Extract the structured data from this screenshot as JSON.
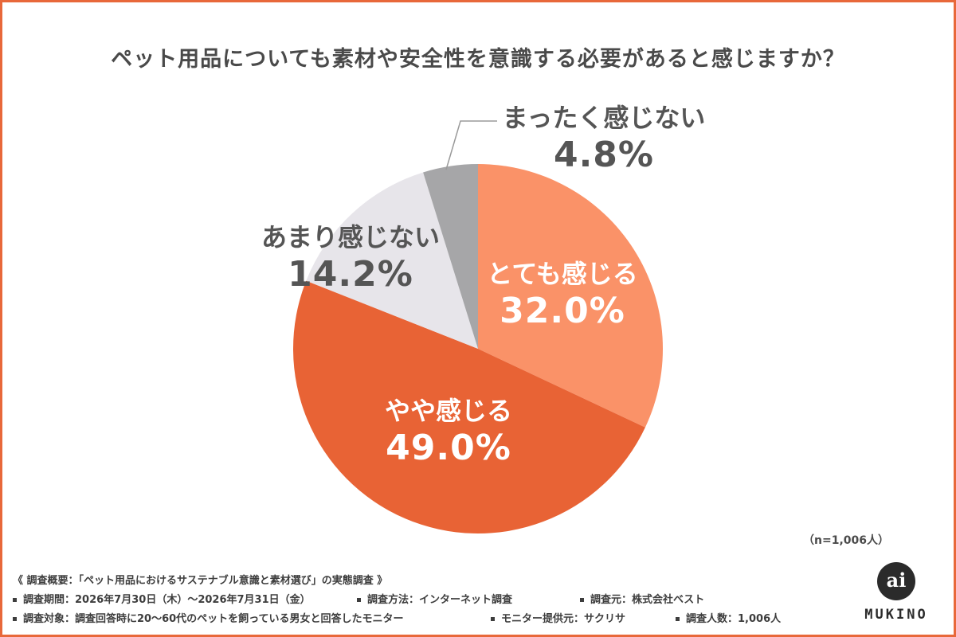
{
  "title": "ペット用品についても素材や安全性を意識する必要があると感じますか？",
  "chart_data": {
    "type": "pie",
    "title": "ペット用品についても素材や安全性を意識する必要があると感じますか？",
    "slices": [
      {
        "label": "とても感じる",
        "percent_text": "32.0%",
        "value": 32.0,
        "color": "#fa9268"
      },
      {
        "label": "やや感じる",
        "percent_text": "49.0%",
        "value": 49.0,
        "color": "#e86335"
      },
      {
        "label": "あまり感じない",
        "percent_text": "14.2%",
        "value": 14.2,
        "color": "#e7e5ea"
      },
      {
        "label": "まったく感じない",
        "percent_text": "4.8%",
        "value": 4.8,
        "color": "#a6a6a8"
      }
    ],
    "start": "12 o'clock",
    "direction": "clockwise"
  },
  "sample_note": "（n=1,006人）",
  "footer": {
    "survey_title": "《 調査概要：「ペット用品におけるサステナブル意識と素材選び」の実態調査 》",
    "period": "調査期間：2026年7月30日（木）〜2026年7月31日（金）",
    "method": "調査方法：インターネット調査",
    "source": "調査元：株式会社ベスト",
    "target": "調査対象：調査回答時に20〜60代のペットを飼っている男女と回答したモニター",
    "provider": "モニター提供元：サクリサ",
    "count": "調査人数：1,006人"
  },
  "logo": {
    "mark": "ai",
    "word": "MUKINO"
  }
}
